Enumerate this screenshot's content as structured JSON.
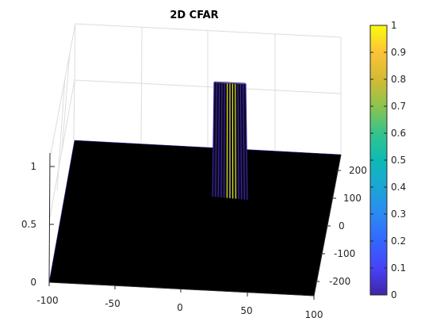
{
  "chart_data": {
    "type": "surface",
    "title": "2D CFAR",
    "colormap": "parula",
    "color_limits": [
      0,
      1
    ],
    "colorbar": {
      "placement": "right",
      "ticks": [
        0,
        0.1,
        0.2,
        0.3,
        0.4,
        0.5,
        0.6,
        0.7,
        0.8,
        0.9,
        1
      ],
      "tick_labels": [
        "0",
        "0.1",
        "0.2",
        "0.3",
        "0.4",
        "0.5",
        "0.6",
        "0.7",
        "0.8",
        "0.9",
        "1"
      ]
    },
    "axes": {
      "x": {
        "range": [
          -100,
          100
        ],
        "ticks": [
          -100,
          -50,
          0,
          50,
          100
        ],
        "tick_labels": [
          "-100",
          "-50",
          "0",
          "50",
          "100"
        ]
      },
      "y": {
        "range": [
          -250,
          250
        ],
        "ticks": [
          -200,
          -100,
          0,
          100,
          200
        ],
        "tick_labels": [
          "-200",
          "-100",
          "0",
          "100",
          "200"
        ]
      },
      "z": {
        "range": [
          0,
          1
        ],
        "ticks": [
          0,
          0.5,
          1
        ],
        "tick_labels": [
          "0",
          "0.5",
          "1"
        ]
      }
    },
    "grid": true,
    "surface": {
      "baseline_value": 0,
      "detections": [
        {
          "value": 1,
          "x_range": [
            15,
            25
          ],
          "y_range": [
            -10,
            10
          ]
        }
      ]
    },
    "colors": {
      "floor": "#000000",
      "edge": "#3D26A8",
      "peak": "#F9FB0E",
      "grid": "#DCDCDC"
    }
  }
}
